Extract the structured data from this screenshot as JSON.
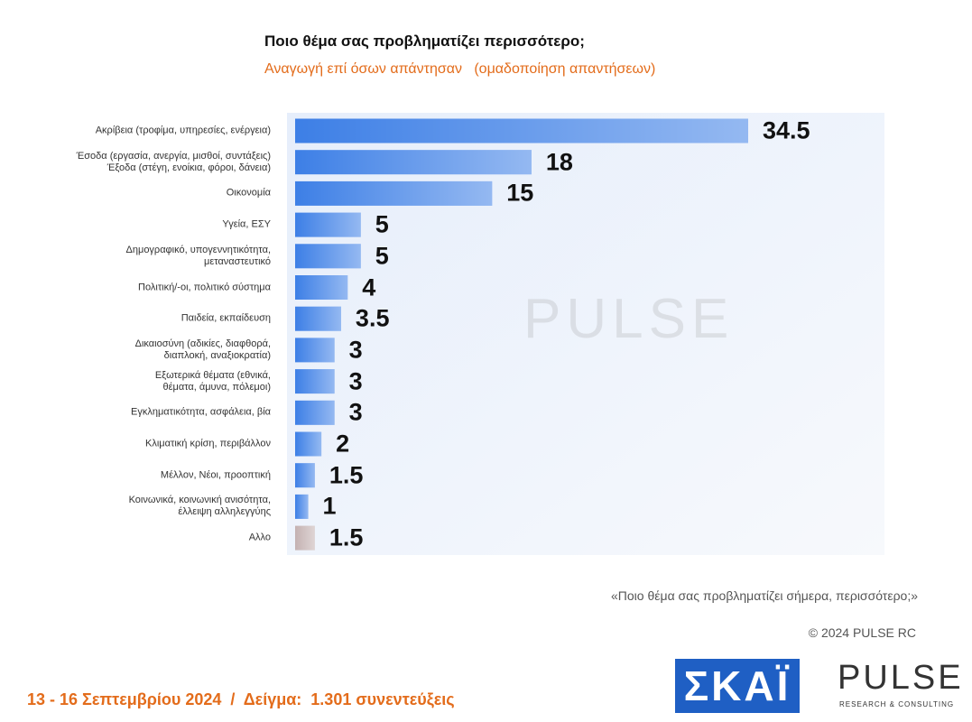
{
  "chart_data": {
    "type": "bar",
    "orientation": "horizontal",
    "title": "Ποιο θέμα σας προβληματίζει περισσότερο;",
    "subtitle": "Αναγωγή επί όσων απάντησαν   (ομαδοποίηση απαντήσεων)",
    "categories": [
      "Ακρίβεια (τροφίμα, υπηρεσίες, ενέργεια)",
      "Έσοδα (εργασία, ανεργία, μισθοί, συντάξεις)\nΈξοδα (στέγη, ενοίκια, φόροι, δάνεια)",
      "Οικονομία",
      "Υγεία, ΕΣΥ",
      "Δημογραφικό, υπογεννητικότητα,\nμεταναστευτικό",
      "Πολιτική/-οι, πολιτικό σύστημα",
      "Παιδεία, εκπαίδευση",
      "Δικαιοσύνη (αδικίες, διαφθορά,\nδιαπλοκή, αναξιοκρατία)",
      "Εξωτερικά θέματα (εθνικά,\nθέματα, άμυνα, πόλεμοι)",
      "Εγκληματικότητα, ασφάλεια, βία",
      "Κλιματική κρίση, περιβάλλον",
      "Μέλλον, Νέοι, προοπτική",
      "Κοινωνικά, κοινωνική ανισότητα,\nέλλειψη αλληλεγγύης",
      "Αλλο"
    ],
    "values": [
      34.5,
      18,
      15,
      5,
      5,
      4,
      3.5,
      3,
      3,
      3,
      2,
      1.5,
      1,
      1.5
    ],
    "colors": [
      "#3d7fe6",
      "#3d7fe6",
      "#3d7fe6",
      "#3d7fe6",
      "#3d7fe6",
      "#3d7fe6",
      "#3d7fe6",
      "#3d7fe6",
      "#3d7fe6",
      "#3d7fe6",
      "#3d7fe6",
      "#3d7fe6",
      "#3d7fe6",
      "#c4b2b2"
    ],
    "note": "«Ποιο θέμα σας προβληματίζει σήμερα, περισσότερο;»",
    "copyright": "© 2024 PULSE RC",
    "footer": "13 - 16 Σεπτεμβρίου 2024  /  Δείγμα:  1.301 συνεντεύξεις",
    "watermark": "PULSE",
    "logo_skai": "ΣΚΑΪ",
    "logo_pulse": "PULSE",
    "logo_pulse_sub": "RESEARCH & CONSULTING"
  }
}
